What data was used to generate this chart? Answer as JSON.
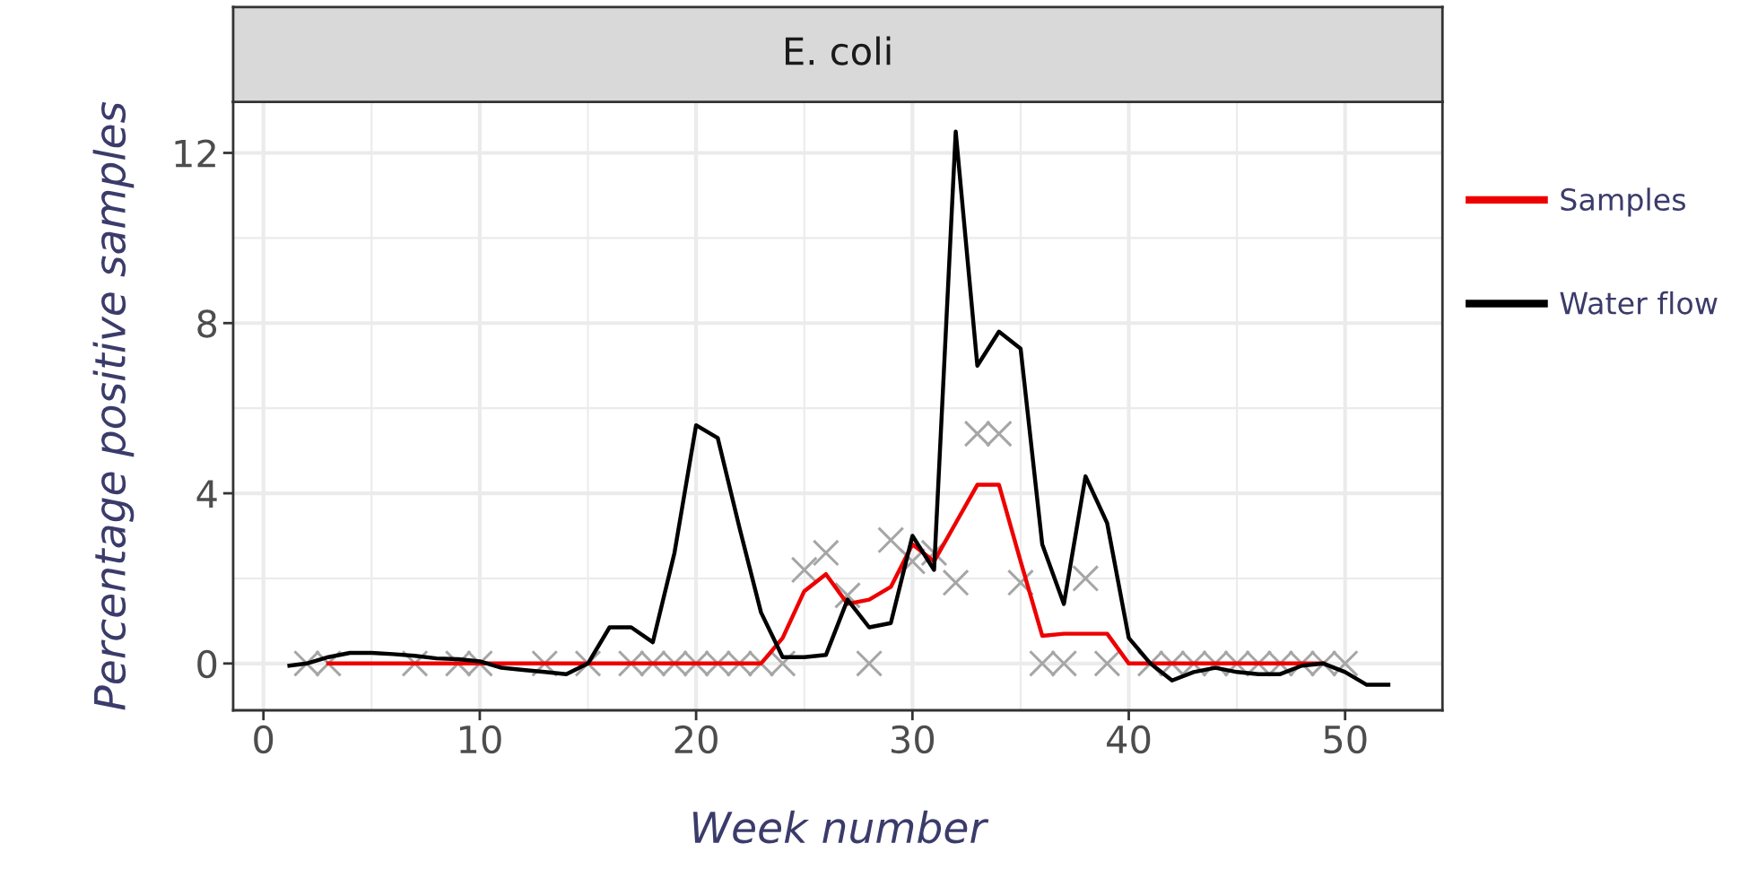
{
  "chart_data": {
    "type": "line",
    "title": "E. coli",
    "xlabel": "Week number",
    "ylabel": "Percentage positive samples",
    "xlim": [
      -1.4,
      54.5
    ],
    "ylim": [
      -1.1,
      13.2
    ],
    "xticks": [
      0,
      10,
      20,
      30,
      40,
      50
    ],
    "yticks": [
      0,
      4,
      8,
      12
    ],
    "grid": true,
    "legend": "right",
    "series": [
      {
        "type": "scatter",
        "color": "#a6a6a6",
        "marker": "cross",
        "x": [
          2,
          3,
          7,
          9,
          10,
          13,
          15,
          17,
          18,
          19,
          20,
          21,
          22,
          23,
          24,
          25,
          26,
          27,
          28,
          29,
          30,
          31,
          32,
          33,
          34,
          35,
          36,
          37,
          38,
          39,
          41,
          42,
          43,
          44,
          45,
          46,
          47,
          48,
          49,
          50
        ],
        "values": [
          0,
          0,
          0,
          0,
          0,
          0,
          0,
          0,
          0,
          0,
          0,
          0,
          0,
          0,
          0,
          2.2,
          2.6,
          1.6,
          0,
          2.9,
          2.4,
          2.6,
          1.9,
          5.4,
          5.4,
          1.9,
          0,
          0,
          2.0,
          0,
          0,
          0,
          0,
          0,
          0,
          0,
          0,
          0,
          0,
          0
        ]
      },
      {
        "name": "Samples",
        "color": "#ee0000",
        "x": [
          3,
          4,
          5,
          6,
          7,
          8,
          9,
          10,
          11,
          12,
          13,
          14,
          15,
          16,
          17,
          18,
          19,
          20,
          21,
          22,
          23,
          24,
          25,
          26,
          27,
          28,
          29,
          30,
          31,
          32,
          33,
          34,
          35,
          36,
          37,
          38,
          39,
          40,
          41,
          42,
          43,
          44,
          45,
          46,
          47,
          48,
          49
        ],
        "values": [
          0,
          0,
          0,
          0,
          0,
          0,
          0,
          0,
          0,
          0,
          0,
          0,
          0,
          0,
          0,
          0,
          0,
          0,
          0,
          0,
          0,
          0.6,
          1.7,
          2.1,
          1.4,
          1.5,
          1.8,
          2.8,
          2.4,
          3.3,
          4.2,
          4.2,
          2.4,
          0.65,
          0.7,
          0.7,
          0.7,
          0,
          0,
          0,
          0,
          0,
          0,
          0,
          0,
          0,
          0
        ]
      },
      {
        "name": "Water flow",
        "color": "#000000",
        "x": [
          1.2,
          2,
          3,
          4,
          5,
          6,
          7,
          8,
          9,
          10,
          11,
          12,
          13,
          14,
          15,
          16,
          17,
          18,
          19,
          20,
          21,
          22,
          23,
          24,
          25,
          26,
          27,
          28,
          29,
          30,
          31,
          32,
          33,
          34,
          35,
          36,
          37,
          38,
          39,
          40,
          41,
          42,
          43,
          44,
          45,
          46,
          47,
          48,
          49,
          50,
          51,
          52
        ],
        "values": [
          -0.05,
          0,
          0.15,
          0.25,
          0.25,
          0.22,
          0.18,
          0.12,
          0.1,
          0.05,
          -0.1,
          -0.15,
          -0.2,
          -0.25,
          0,
          0.85,
          0.85,
          0.5,
          2.6,
          5.6,
          5.3,
          3.2,
          1.2,
          0.15,
          0.15,
          0.2,
          1.5,
          0.85,
          0.95,
          3.0,
          2.2,
          12.5,
          7.0,
          7.8,
          7.4,
          2.8,
          1.4,
          4.4,
          3.3,
          0.6,
          0,
          -0.4,
          -0.2,
          -0.1,
          -0.2,
          -0.25,
          -0.25,
          -0.05,
          0,
          -0.2,
          -0.5,
          -0.5
        ]
      }
    ]
  }
}
